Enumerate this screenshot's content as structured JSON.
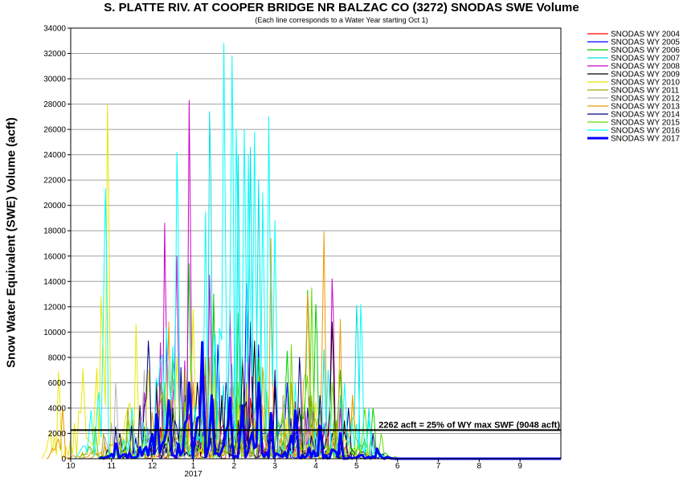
{
  "chart_data": {
    "type": "line",
    "title": "S. PLATTE RIV. AT COOPER BRIDGE NR BALZAC CO (3272) SNODAS SWE Volume",
    "subtitle": "(Each line corresponds to a Water Year starting Oct 1)",
    "ylabel": "Snow Water Equivalent (SWE) Volume (acft)",
    "xlabel": "",
    "ylim": [
      0,
      34000
    ],
    "y_ticks": [
      0,
      2000,
      4000,
      6000,
      8000,
      10000,
      12000,
      14000,
      16000,
      18000,
      20000,
      22000,
      24000,
      26000,
      28000,
      30000,
      32000,
      34000
    ],
    "xlim": [
      10,
      22
    ],
    "x_ticks": [
      {
        "value": 10,
        "label": "10"
      },
      {
        "value": 11,
        "label": "11"
      },
      {
        "value": 12,
        "label": "12"
      },
      {
        "value": 13,
        "label": "1"
      },
      {
        "value": 14,
        "label": "2"
      },
      {
        "value": 15,
        "label": "3"
      },
      {
        "value": 16,
        "label": "4"
      },
      {
        "value": 17,
        "label": "5"
      },
      {
        "value": 18,
        "label": "6"
      },
      {
        "value": 19,
        "label": "7"
      },
      {
        "value": 20,
        "label": "8"
      },
      {
        "value": 21,
        "label": "9"
      }
    ],
    "x_year_label": {
      "value": 13,
      "label": "2017"
    },
    "grid": true,
    "legend_position": "outside-right",
    "series": [
      {
        "name": "SNODAS WY 2004",
        "color": "#ff0000",
        "peaks": [
          [
            12.2,
            2500
          ],
          [
            12.9,
            3500
          ],
          [
            13.6,
            4000
          ],
          [
            14.4,
            4800
          ],
          [
            15.0,
            6000
          ],
          [
            15.5,
            4500
          ],
          [
            16.2,
            2500
          ]
        ]
      },
      {
        "name": "SNODAS WY 2005",
        "color": "#0000ff",
        "peaks": [
          [
            11.2,
            1500
          ],
          [
            12.1,
            3000
          ],
          [
            12.8,
            5000
          ],
          [
            13.6,
            9000
          ],
          [
            14.3,
            13800
          ],
          [
            14.6,
            9000
          ],
          [
            15.3,
            6000
          ],
          [
            15.8,
            4000
          ],
          [
            16.4,
            2000
          ]
        ]
      },
      {
        "name": "SNODAS WY 2006",
        "color": "#00cc00",
        "peaks": [
          [
            12.2,
            6000
          ],
          [
            12.5,
            8000
          ],
          [
            12.9,
            15400
          ],
          [
            13.5,
            13000
          ],
          [
            14.1,
            11500
          ],
          [
            14.6,
            8000
          ],
          [
            15.3,
            8500
          ],
          [
            15.8,
            13300
          ],
          [
            16.0,
            12200
          ],
          [
            16.6,
            7000
          ],
          [
            17.4,
            4000
          ]
        ]
      },
      {
        "name": "SNODAS WY 2007",
        "color": "#00e0e0",
        "peaks": [
          [
            13.4,
            27400
          ],
          [
            14.1,
            24000
          ],
          [
            14.4,
            24600
          ],
          [
            14.6,
            22000
          ],
          [
            16.2,
            8600
          ],
          [
            16.6,
            5000
          ],
          [
            17.0,
            12100
          ],
          [
            17.3,
            4000
          ]
        ]
      },
      {
        "name": "SNODAS WY 2008",
        "color": "#cc00cc",
        "peaks": [
          [
            11.8,
            5200
          ],
          [
            12.3,
            18600
          ],
          [
            12.6,
            16000
          ],
          [
            12.9,
            28300
          ],
          [
            13.4,
            14500
          ],
          [
            13.9,
            11700
          ],
          [
            14.4,
            10200
          ],
          [
            15.0,
            6500
          ],
          [
            16.4,
            14200
          ],
          [
            16.6,
            4000
          ]
        ]
      },
      {
        "name": "SNODAS WY 2009",
        "color": "#000000",
        "peaks": [
          [
            11.2,
            2000
          ],
          [
            11.8,
            2500
          ],
          [
            12.1,
            6000
          ],
          [
            12.5,
            4000
          ],
          [
            13.1,
            6000
          ],
          [
            13.7,
            5000
          ],
          [
            14.2,
            8000
          ],
          [
            14.5,
            9300
          ],
          [
            15.0,
            5500
          ],
          [
            15.6,
            4000
          ],
          [
            16.4,
            10800
          ],
          [
            16.7,
            3000
          ]
        ]
      },
      {
        "name": "SNODAS WY 2010",
        "color": "#e8e800",
        "peaks": [
          [
            9.7,
            6900
          ],
          [
            10.3,
            7100
          ],
          [
            10.9,
            28000
          ],
          [
            11.6,
            10600
          ],
          [
            11.9,
            7000
          ],
          [
            12.6,
            8000
          ],
          [
            13.0,
            11800
          ],
          [
            13.5,
            7000
          ],
          [
            14.1,
            4500
          ],
          [
            14.6,
            6500
          ],
          [
            15.4,
            6000
          ],
          [
            16.0,
            4500
          ],
          [
            16.9,
            5000
          ]
        ]
      },
      {
        "name": "SNODAS WY 2011",
        "color": "#a8a800",
        "peaks": [
          [
            10.8,
            2000
          ],
          [
            11.4,
            4000
          ],
          [
            12.3,
            5000
          ],
          [
            12.8,
            7000
          ],
          [
            13.3,
            8000
          ],
          [
            14.0,
            6000
          ],
          [
            14.7,
            7200
          ],
          [
            15.2,
            5000
          ],
          [
            15.9,
            5000
          ],
          [
            16.5,
            3000
          ]
        ]
      },
      {
        "name": "SNODAS WY 2012",
        "color": "#b4b4b4",
        "peaks": [
          [
            10.6,
            2500
          ],
          [
            11.1,
            6000
          ],
          [
            11.8,
            7000
          ],
          [
            12.5,
            6200
          ],
          [
            13.2,
            5000
          ],
          [
            13.9,
            5600
          ],
          [
            14.5,
            4000
          ],
          [
            15.2,
            4800
          ],
          [
            15.8,
            3000
          ]
        ]
      },
      {
        "name": "SNODAS WY 2013",
        "color": "#ee9900",
        "peaks": [
          [
            9.8,
            4000
          ],
          [
            11.5,
            3000
          ],
          [
            12.4,
            10800
          ],
          [
            13.0,
            6000
          ],
          [
            13.6,
            4500
          ],
          [
            14.3,
            6000
          ],
          [
            14.9,
            17400
          ],
          [
            15.4,
            6000
          ],
          [
            15.8,
            13000
          ],
          [
            16.2,
            17900
          ],
          [
            16.6,
            11000
          ],
          [
            16.9,
            5000
          ]
        ]
      },
      {
        "name": "SNODAS WY 2014",
        "color": "#000080",
        "peaks": [
          [
            11.1,
            2500
          ],
          [
            11.9,
            9300
          ],
          [
            12.7,
            7200
          ],
          [
            13.2,
            6500
          ],
          [
            13.8,
            6000
          ],
          [
            14.4,
            10800
          ],
          [
            15.0,
            7000
          ],
          [
            15.6,
            8000
          ],
          [
            16.1,
            5000
          ],
          [
            16.8,
            4000
          ],
          [
            17.4,
            2000
          ]
        ]
      },
      {
        "name": "SNODAS WY 2015",
        "color": "#66dd00",
        "peaks": [
          [
            10.6,
            2500
          ],
          [
            11.4,
            3000
          ],
          [
            12.3,
            6000
          ],
          [
            12.8,
            4500
          ],
          [
            13.4,
            8000
          ],
          [
            14.1,
            6000
          ],
          [
            14.8,
            5500
          ],
          [
            15.4,
            9000
          ],
          [
            15.9,
            13500
          ],
          [
            16.4,
            6000
          ],
          [
            17.2,
            4000
          ],
          [
            17.6,
            2000
          ]
        ]
      },
      {
        "name": "SNODAS WY 2016",
        "color": "#00ffff",
        "peaks": [
          [
            10.5,
            3800
          ],
          [
            10.85,
            21300
          ],
          [
            11.5,
            4000
          ],
          [
            12.6,
            24200
          ],
          [
            13.3,
            19500
          ],
          [
            13.75,
            32800
          ],
          [
            13.95,
            31800
          ],
          [
            14.05,
            26000
          ],
          [
            14.25,
            26000
          ],
          [
            14.35,
            24000
          ],
          [
            14.5,
            25800
          ],
          [
            14.7,
            21000
          ],
          [
            14.85,
            27000
          ],
          [
            15.0,
            18800
          ],
          [
            15.5,
            6000
          ],
          [
            16.3,
            7000
          ],
          [
            16.7,
            6000
          ],
          [
            17.1,
            12200
          ],
          [
            17.3,
            3000
          ]
        ]
      },
      {
        "name": "SNODAS WY 2017",
        "color": "#0000ff",
        "bold": true,
        "peaks": [
          [
            11.1,
            1200
          ],
          [
            12.1,
            3500
          ],
          [
            12.4,
            4600
          ],
          [
            12.9,
            6000
          ],
          [
            13.22,
            9200
          ],
          [
            13.45,
            5000
          ],
          [
            13.9,
            4800
          ],
          [
            14.2,
            4200
          ],
          [
            14.6,
            6000
          ],
          [
            14.9,
            3600
          ],
          [
            15.5,
            3800
          ],
          [
            16.1,
            2600
          ],
          [
            16.6,
            2000
          ],
          [
            17.5,
            800
          ]
        ]
      }
    ],
    "threshold": {
      "value": 2262,
      "label": "2262 acft = 25% of WY max SWF (9048 acft)"
    }
  }
}
